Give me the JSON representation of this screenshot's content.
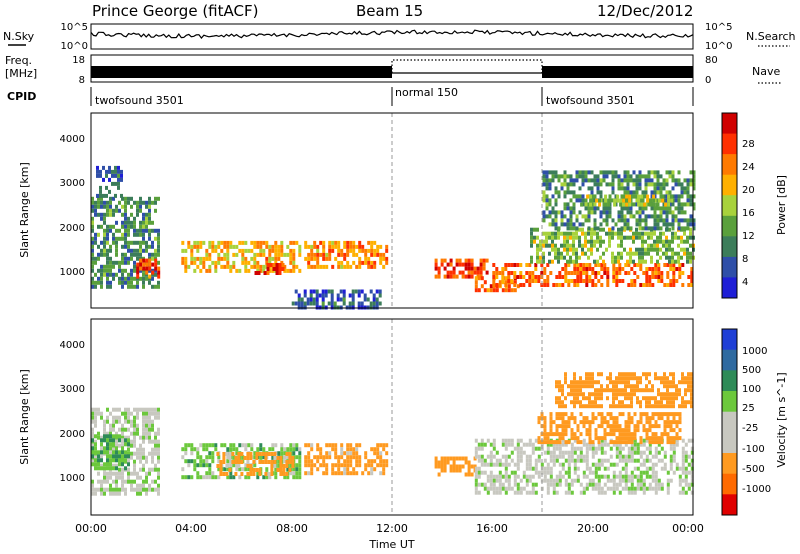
{
  "header": {
    "station": "Prince George (fitACF)",
    "beam": "Beam 15",
    "date": "12/Dec/2012"
  },
  "noise_panel": {
    "left_label": "N.Sky",
    "right_label": "N.Search",
    "left_ticks": [
      "10^5",
      "10^0"
    ],
    "right_ticks": [
      "10^5",
      "10^0"
    ]
  },
  "freq_panel": {
    "left_label_line1": "Freq.",
    "left_label_line2": "[MHz]",
    "left_ticks": [
      "18",
      "8"
    ],
    "right_label": "Nave",
    "right_ticks": [
      "80",
      "0"
    ]
  },
  "cpid": {
    "label": "CPID",
    "segments": [
      {
        "name": "twofsound 3501",
        "start_hour": 0,
        "end_hour": 12
      },
      {
        "name": "normal 150",
        "start_hour": 12,
        "end_hour": 18
      },
      {
        "name": "twofsound 3501",
        "start_hour": 18,
        "end_hour": 24
      }
    ]
  },
  "chart_data": [
    {
      "type": "heatmap",
      "title": "",
      "xlabel": "",
      "ylabel": "Slant Range [km]",
      "xlim_hours": [
        0,
        24
      ],
      "ylim": [
        180,
        4600
      ],
      "yticks": [
        1000,
        2000,
        3000,
        4000
      ],
      "ytick_labels": [
        "1000",
        "2000",
        "3000",
        "4000"
      ],
      "xticks_hours": [
        0,
        4,
        8,
        12,
        16,
        20,
        24
      ],
      "grid": false,
      "colorbar": {
        "label": "Power [dB]",
        "range": [
          0,
          32
        ],
        "ticks": [
          4,
          8,
          12,
          16,
          20,
          24,
          28
        ],
        "tick_labels": [
          "4",
          "8",
          "12",
          "16",
          "20",
          "24",
          "28"
        ],
        "colors": [
          "#1f1fd6",
          "#2f4fa8",
          "#3c7d5a",
          "#5aa03c",
          "#a8d23c",
          "#ffb000",
          "#ff7a00",
          "#ff3000",
          "#d00000"
        ]
      },
      "echo_regions": [
        {
          "t0": 0.0,
          "t1": 2.7,
          "r0": 700,
          "r1": 2700,
          "power_dB": 10
        },
        {
          "t0": 0.2,
          "t1": 1.2,
          "r0": 2700,
          "r1": 3400,
          "power_dB": 6
        },
        {
          "t0": 1.8,
          "t1": 2.7,
          "r0": 900,
          "r1": 1300,
          "power_dB": 26
        },
        {
          "t0": 3.6,
          "t1": 8.3,
          "r0": 1050,
          "r1": 1700,
          "power_dB": 20
        },
        {
          "t0": 6.4,
          "t1": 7.6,
          "r0": 950,
          "r1": 1200,
          "power_dB": 28
        },
        {
          "t0": 8.5,
          "t1": 11.8,
          "r0": 1150,
          "r1": 1700,
          "power_dB": 22
        },
        {
          "t0": 8.0,
          "t1": 11.5,
          "r0": 200,
          "r1": 600,
          "power_dB": 6
        },
        {
          "t0": 13.7,
          "t1": 15.8,
          "r0": 850,
          "r1": 1300,
          "power_dB": 26
        },
        {
          "t0": 15.3,
          "t1": 17.0,
          "r0": 550,
          "r1": 900,
          "power_dB": 24
        },
        {
          "t0": 16.0,
          "t1": 24.0,
          "r0": 700,
          "r1": 1200,
          "power_dB": 24
        },
        {
          "t0": 17.5,
          "t1": 24.0,
          "r0": 1200,
          "r1": 2000,
          "power_dB": 14
        },
        {
          "t0": 18.0,
          "t1": 24.0,
          "r0": 2000,
          "r1": 3300,
          "power_dB": 10
        },
        {
          "t0": 19.5,
          "t1": 23.2,
          "r0": 2500,
          "r1": 2750,
          "power_dB": 16
        }
      ]
    },
    {
      "type": "heatmap",
      "title": "",
      "xlabel": "Time UT",
      "ylabel": "Slant Range [km]",
      "xlim_hours": [
        0,
        24
      ],
      "ylim": [
        180,
        4600
      ],
      "yticks": [
        1000,
        2000,
        3000,
        4000
      ],
      "ytick_labels": [
        "1000",
        "2000",
        "3000",
        "4000"
      ],
      "xticks_hours": [
        0,
        4,
        8,
        12,
        16,
        20,
        24
      ],
      "xtick_labels": [
        "00:00",
        "04:00",
        "08:00",
        "12:00",
        "16:00",
        "20:00",
        "00:00"
      ],
      "grid": false,
      "colorbar": {
        "label": "Velocity [m s^-1]",
        "ticks": [
          1000,
          500,
          100,
          25,
          -25,
          -100,
          -500,
          -1000
        ],
        "tick_labels": [
          "1000",
          "500",
          "100",
          "25",
          "-25",
          "-100",
          "-500",
          "-1000"
        ],
        "colors": [
          "#1f3fd6",
          "#2f6aa0",
          "#2e8b57",
          "#6cc83c",
          "#c8c8c0",
          "#c8c8c0",
          "#ff9a20",
          "#ff6a00",
          "#e00000"
        ]
      },
      "echo_regions": [
        {
          "t0": 0.0,
          "t1": 2.7,
          "r0": 700,
          "r1": 2600,
          "velocity_ms": 0
        },
        {
          "t0": 0.0,
          "t1": 1.5,
          "r0": 1200,
          "r1": 2000,
          "velocity_ms": 80
        },
        {
          "t0": 3.6,
          "t1": 8.3,
          "r0": 1050,
          "r1": 1800,
          "velocity_ms": 60
        },
        {
          "t0": 5.0,
          "t1": 8.0,
          "r0": 1100,
          "r1": 1600,
          "velocity_ms": -150
        },
        {
          "t0": 8.5,
          "t1": 11.8,
          "r0": 1150,
          "r1": 1800,
          "velocity_ms": -150
        },
        {
          "t0": 13.7,
          "t1": 15.3,
          "r0": 1050,
          "r1": 1500,
          "velocity_ms": -200
        },
        {
          "t0": 15.3,
          "t1": 24.0,
          "r0": 700,
          "r1": 1900,
          "velocity_ms": 0
        },
        {
          "t0": 17.8,
          "t1": 23.5,
          "r0": 1800,
          "r1": 2500,
          "velocity_ms": -300
        },
        {
          "t0": 18.5,
          "t1": 24.0,
          "r0": 2600,
          "r1": 3400,
          "velocity_ms": -250
        }
      ]
    }
  ]
}
